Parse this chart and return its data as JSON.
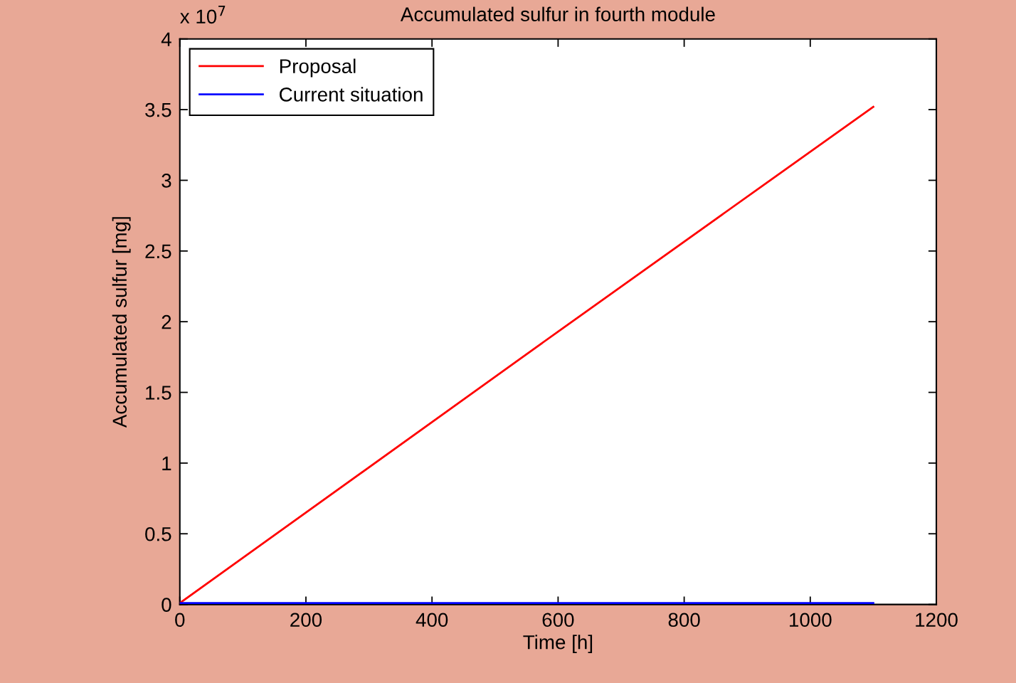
{
  "chart_data": {
    "type": "line",
    "title": "Accumulated sulfur in fourth module",
    "xlabel": "Time [h]",
    "ylabel": "Accumulated sulfur [mg]",
    "annotations": [
      "x 10$^{7}$"
    ],
    "series": [
      {
        "name": "Proposal",
        "color": "#ff0000",
        "x": [
          0,
          600,
          1100
        ],
        "values": [
          0.01,
          1.93,
          3.52
        ]
      },
      {
        "name": "Current situation",
        "color": "#0000ff",
        "x": [
          0,
          1100
        ],
        "values": [
          0.01,
          0.01
        ]
      }
    ],
    "xlim": [
      0,
      1200
    ],
    "xticks": [
      0,
      200,
      400,
      600,
      800,
      1000,
      1200
    ],
    "ylim": [
      0,
      4
    ],
    "yticks": [
      0,
      0.5,
      1,
      1.5,
      2,
      2.5,
      3,
      3.5,
      4
    ],
    "legend": "top left",
    "grid": false,
    "marker": "none",
    "line_style": "solid"
  }
}
